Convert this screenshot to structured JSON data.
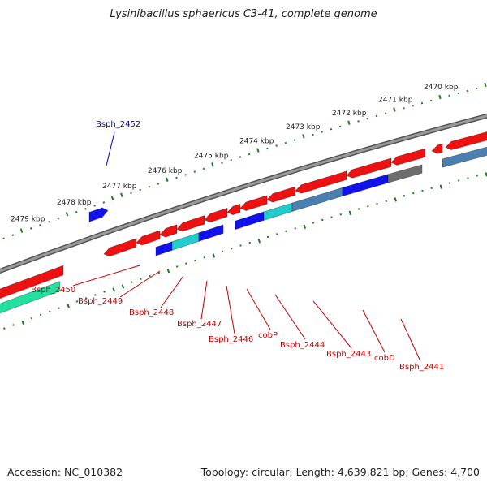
{
  "title": "Lysinibacillus sphaericus C3-41, complete genome",
  "footer": {
    "accession": "Accession: NC_010382",
    "summary": "Topology: circular; Length: 4,639,821 bp; Genes: 4,700"
  },
  "colors": {
    "backbone": "#808080",
    "ticks": "#1e7d1e",
    "red": "#ee1111",
    "blue": "#1111ee",
    "cyan": "#22cccc",
    "steel": "#4a7fb0",
    "gray": "#6d6d6d",
    "green": "#22e0a0",
    "label_red": "#cc0000",
    "label_blue": "#0000bb"
  },
  "kbp_labels": [
    "2479 kbp",
    "2478 kbp",
    "2477 kbp",
    "2476 kbp",
    "2475 kbp",
    "2474 kbp",
    "2473 kbp",
    "2472 kbp",
    "2471 kbp",
    "2470 kbp"
  ],
  "gene_labels": [
    {
      "text": "Bsph_2452",
      "color": "blue"
    },
    {
      "text": "Bsph_2450",
      "color": "red"
    },
    {
      "text": "Bsph_2449",
      "color": "red"
    },
    {
      "text": "Bsph_2448",
      "color": "red"
    },
    {
      "text": "Bsph_2447",
      "color": "red"
    },
    {
      "text": "Bsph_2446",
      "color": "red"
    },
    {
      "text": "cobP",
      "color": "red"
    },
    {
      "text": "Bsph_2444",
      "color": "red"
    },
    {
      "text": "Bsph_2443",
      "color": "red"
    },
    {
      "text": "cobD",
      "color": "red"
    },
    {
      "text": "Bsph_2441",
      "color": "red"
    }
  ]
}
